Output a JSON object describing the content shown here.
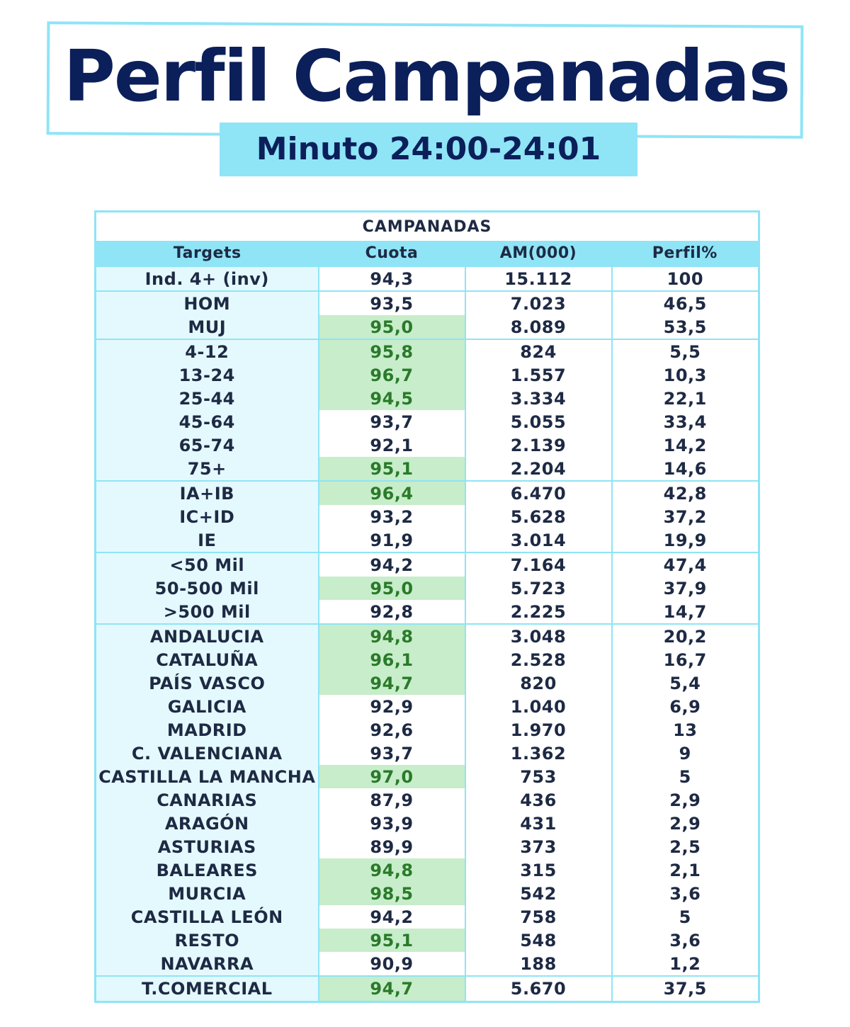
{
  "header": {
    "title": "Perfil Campanadas",
    "subtitle": "Minuto 24:00-24:01"
  },
  "table": {
    "caption": "CAMPANADAS",
    "columns": [
      "Targets",
      "Cuota",
      "AM(000)",
      "Perfil%"
    ],
    "highlight_color": "#c7edca",
    "rows": [
      {
        "target": "Ind. 4+ (inv)",
        "cuota": "94,3",
        "am": "15.112",
        "perfil": "100",
        "highlight": false,
        "group_start": true
      },
      {
        "target": "HOM",
        "cuota": "93,5",
        "am": "7.023",
        "perfil": "46,5",
        "highlight": false,
        "group_start": true
      },
      {
        "target": "MUJ",
        "cuota": "95,0",
        "am": "8.089",
        "perfil": "53,5",
        "highlight": true,
        "group_start": false
      },
      {
        "target": "4-12",
        "cuota": "95,8",
        "am": "824",
        "perfil": "5,5",
        "highlight": true,
        "group_start": true
      },
      {
        "target": "13-24",
        "cuota": "96,7",
        "am": "1.557",
        "perfil": "10,3",
        "highlight": true,
        "group_start": false
      },
      {
        "target": "25-44",
        "cuota": "94,5",
        "am": "3.334",
        "perfil": "22,1",
        "highlight": true,
        "group_start": false
      },
      {
        "target": "45-64",
        "cuota": "93,7",
        "am": "5.055",
        "perfil": "33,4",
        "highlight": false,
        "group_start": false
      },
      {
        "target": "65-74",
        "cuota": "92,1",
        "am": "2.139",
        "perfil": "14,2",
        "highlight": false,
        "group_start": false
      },
      {
        "target": "75+",
        "cuota": "95,1",
        "am": "2.204",
        "perfil": "14,6",
        "highlight": true,
        "group_start": false
      },
      {
        "target": "IA+IB",
        "cuota": "96,4",
        "am": "6.470",
        "perfil": "42,8",
        "highlight": true,
        "group_start": true
      },
      {
        "target": "IC+ID",
        "cuota": "93,2",
        "am": "5.628",
        "perfil": "37,2",
        "highlight": false,
        "group_start": false
      },
      {
        "target": "IE",
        "cuota": "91,9",
        "am": "3.014",
        "perfil": "19,9",
        "highlight": false,
        "group_start": false
      },
      {
        "target": "<50 Mil",
        "cuota": "94,2",
        "am": "7.164",
        "perfil": "47,4",
        "highlight": false,
        "group_start": true
      },
      {
        "target": "50-500 Mil",
        "cuota": "95,0",
        "am": "5.723",
        "perfil": "37,9",
        "highlight": true,
        "group_start": false
      },
      {
        "target": ">500 Mil",
        "cuota": "92,8",
        "am": "2.225",
        "perfil": "14,7",
        "highlight": false,
        "group_start": false
      },
      {
        "target": "ANDALUCIA",
        "cuota": "94,8",
        "am": "3.048",
        "perfil": "20,2",
        "highlight": true,
        "group_start": true
      },
      {
        "target": "CATALUÑA",
        "cuota": "96,1",
        "am": "2.528",
        "perfil": "16,7",
        "highlight": true,
        "group_start": false
      },
      {
        "target": "PAÍS VASCO",
        "cuota": "94,7",
        "am": "820",
        "perfil": "5,4",
        "highlight": true,
        "group_start": false
      },
      {
        "target": "GALICIA",
        "cuota": "92,9",
        "am": "1.040",
        "perfil": "6,9",
        "highlight": false,
        "group_start": false
      },
      {
        "target": "MADRID",
        "cuota": "92,6",
        "am": "1.970",
        "perfil": "13",
        "highlight": false,
        "group_start": false
      },
      {
        "target": "C. VALENCIANA",
        "cuota": "93,7",
        "am": "1.362",
        "perfil": "9",
        "highlight": false,
        "group_start": false
      },
      {
        "target": "CASTILLA LA MANCHA",
        "cuota": "97,0",
        "am": "753",
        "perfil": "5",
        "highlight": true,
        "group_start": false
      },
      {
        "target": "CANARIAS",
        "cuota": "87,9",
        "am": "436",
        "perfil": "2,9",
        "highlight": false,
        "group_start": false
      },
      {
        "target": "ARAGÓN",
        "cuota": "93,9",
        "am": "431",
        "perfil": "2,9",
        "highlight": false,
        "group_start": false
      },
      {
        "target": "ASTURIAS",
        "cuota": "89,9",
        "am": "373",
        "perfil": "2,5",
        "highlight": false,
        "group_start": false
      },
      {
        "target": "BALEARES",
        "cuota": "94,8",
        "am": "315",
        "perfil": "2,1",
        "highlight": true,
        "group_start": false
      },
      {
        "target": "MURCIA",
        "cuota": "98,5",
        "am": "542",
        "perfil": "3,6",
        "highlight": true,
        "group_start": false
      },
      {
        "target": "CASTILLA LEÓN",
        "cuota": "94,2",
        "am": "758",
        "perfil": "5",
        "highlight": false,
        "group_start": false
      },
      {
        "target": "RESTO",
        "cuota": "95,1",
        "am": "548",
        "perfil": "3,6",
        "highlight": true,
        "group_start": false
      },
      {
        "target": "NAVARRA",
        "cuota": "90,9",
        "am": "188",
        "perfil": "1,2",
        "highlight": false,
        "group_start": false
      },
      {
        "target": "T.COMERCIAL",
        "cuota": "94,7",
        "am": "5.670",
        "perfil": "37,5",
        "highlight": true,
        "group_start": true
      }
    ]
  }
}
